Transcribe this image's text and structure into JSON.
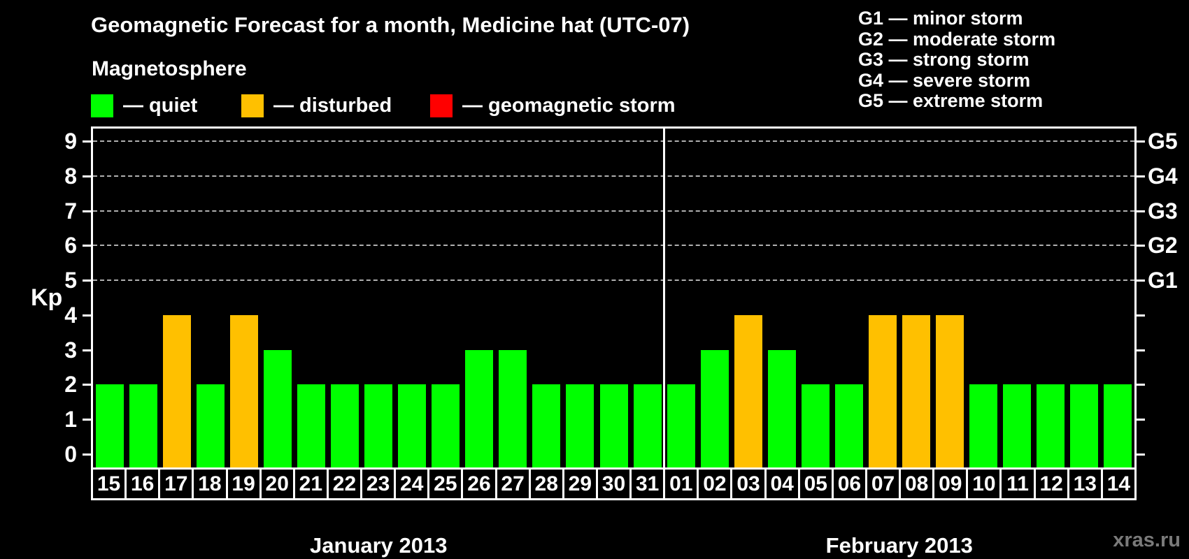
{
  "title": "Geomagnetic Forecast for a month, Medicine hat (UTC-07)",
  "legend": {
    "heading": "Magnetosphere",
    "items": [
      {
        "name": "quiet",
        "label": "— quiet",
        "color": "#00FF00"
      },
      {
        "name": "disturbed",
        "label": "— disturbed",
        "color": "#FFC000"
      },
      {
        "name": "storm",
        "label": "— geomagnetic storm",
        "color": "#FF0000"
      }
    ]
  },
  "g_legend": [
    "G1 — minor storm",
    "G2 — moderate storm",
    "G3 — strong storm",
    "G4 — severe storm",
    "G5 — extreme storm"
  ],
  "y_axis": {
    "label": "Kp",
    "ticks": [
      0,
      1,
      2,
      3,
      4,
      5,
      6,
      7,
      8,
      9
    ]
  },
  "right_axis": {
    "labels": [
      {
        "text": "G1",
        "kp": 5
      },
      {
        "text": "G2",
        "kp": 6
      },
      {
        "text": "G3",
        "kp": 7
      },
      {
        "text": "G4",
        "kp": 8
      },
      {
        "text": "G5",
        "kp": 9
      }
    ]
  },
  "months": [
    {
      "label": "January 2013",
      "days_count": 17
    },
    {
      "label": "February 2013",
      "days_count": 14
    }
  ],
  "watermark": "xras.ru",
  "chart_data": {
    "type": "bar",
    "title": "Geomagnetic Forecast for a month, Medicine hat (UTC-07)",
    "xlabel": "",
    "ylabel": "Kp",
    "ylim": [
      0,
      9
    ],
    "grid": "dashed horizontal lines at Kp 5-9 only",
    "legend_position": "top-left",
    "gridlines_at": [
      5,
      6,
      7,
      8,
      9
    ],
    "status_colors": {
      "quiet": "#00FF00",
      "disturbed": "#FFC000",
      "storm": "#FF0000"
    },
    "days": [
      {
        "month": "January 2013",
        "day": "15",
        "kp": 2,
        "status": "quiet"
      },
      {
        "month": "January 2013",
        "day": "16",
        "kp": 2,
        "status": "quiet"
      },
      {
        "month": "January 2013",
        "day": "17",
        "kp": 4,
        "status": "disturbed"
      },
      {
        "month": "January 2013",
        "day": "18",
        "kp": 2,
        "status": "quiet"
      },
      {
        "month": "January 2013",
        "day": "19",
        "kp": 4,
        "status": "disturbed"
      },
      {
        "month": "January 2013",
        "day": "20",
        "kp": 3,
        "status": "quiet"
      },
      {
        "month": "January 2013",
        "day": "21",
        "kp": 2,
        "status": "quiet"
      },
      {
        "month": "January 2013",
        "day": "22",
        "kp": 2,
        "status": "quiet"
      },
      {
        "month": "January 2013",
        "day": "23",
        "kp": 2,
        "status": "quiet"
      },
      {
        "month": "January 2013",
        "day": "24",
        "kp": 2,
        "status": "quiet"
      },
      {
        "month": "January 2013",
        "day": "25",
        "kp": 2,
        "status": "quiet"
      },
      {
        "month": "January 2013",
        "day": "26",
        "kp": 3,
        "status": "quiet"
      },
      {
        "month": "January 2013",
        "day": "27",
        "kp": 3,
        "status": "quiet"
      },
      {
        "month": "January 2013",
        "day": "28",
        "kp": 2,
        "status": "quiet"
      },
      {
        "month": "January 2013",
        "day": "29",
        "kp": 2,
        "status": "quiet"
      },
      {
        "month": "January 2013",
        "day": "30",
        "kp": 2,
        "status": "quiet"
      },
      {
        "month": "January 2013",
        "day": "31",
        "kp": 2,
        "status": "quiet"
      },
      {
        "month": "February 2013",
        "day": "01",
        "kp": 2,
        "status": "quiet"
      },
      {
        "month": "February 2013",
        "day": "02",
        "kp": 3,
        "status": "quiet"
      },
      {
        "month": "February 2013",
        "day": "03",
        "kp": 4,
        "status": "disturbed"
      },
      {
        "month": "February 2013",
        "day": "04",
        "kp": 3,
        "status": "quiet"
      },
      {
        "month": "February 2013",
        "day": "05",
        "kp": 2,
        "status": "quiet"
      },
      {
        "month": "February 2013",
        "day": "06",
        "kp": 2,
        "status": "quiet"
      },
      {
        "month": "February 2013",
        "day": "07",
        "kp": 4,
        "status": "disturbed"
      },
      {
        "month": "February 2013",
        "day": "08",
        "kp": 4,
        "status": "disturbed"
      },
      {
        "month": "February 2013",
        "day": "09",
        "kp": 4,
        "status": "disturbed"
      },
      {
        "month": "February 2013",
        "day": "10",
        "kp": 2,
        "status": "quiet"
      },
      {
        "month": "February 2013",
        "day": "11",
        "kp": 2,
        "status": "quiet"
      },
      {
        "month": "February 2013",
        "day": "12",
        "kp": 2,
        "status": "quiet"
      },
      {
        "month": "February 2013",
        "day": "13",
        "kp": 2,
        "status": "quiet"
      },
      {
        "month": "February 2013",
        "day": "14",
        "kp": 2,
        "status": "quiet"
      }
    ]
  }
}
